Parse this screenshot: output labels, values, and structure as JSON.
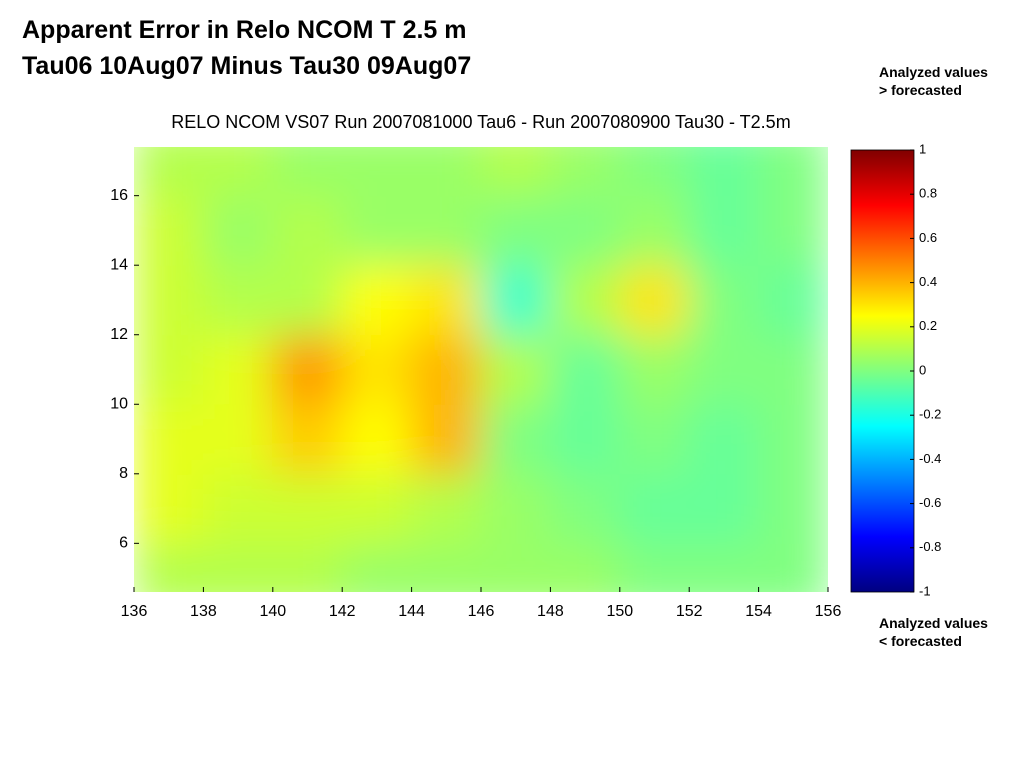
{
  "header": {
    "title_lines": [
      "Apparent Error in Relo NCOM T 2.5 m",
      "Tau06 10Aug07 Minus Tau30 09Aug07"
    ]
  },
  "chart_data": {
    "type": "heatmap",
    "title": "RELO NCOM VS07 Run 2007081000 Tau6 - Run 2007080900 Tau30 - T2.5m",
    "x": [
      137,
      139,
      141,
      143,
      145,
      147,
      149,
      151,
      153,
      155
    ],
    "y": [
      5,
      7,
      9,
      11,
      13,
      15,
      17
    ],
    "values": [
      [
        0.1,
        0.1,
        0.1,
        0.05,
        0.05,
        0.05,
        0.05,
        0,
        0,
        0
      ],
      [
        0.2,
        0.15,
        0.15,
        0.15,
        0.1,
        0.05,
        0,
        -0.05,
        -0.05,
        0
      ],
      [
        0.2,
        0.2,
        0.35,
        0.25,
        0.4,
        0,
        -0.05,
        0,
        -0.05,
        0
      ],
      [
        0.15,
        0.2,
        0.45,
        0.3,
        0.4,
        0.1,
        -0.05,
        0.05,
        0,
        0
      ],
      [
        0.15,
        0.1,
        0.1,
        0.25,
        0.3,
        -0.15,
        0.1,
        0.3,
        0,
        -0.05
      ],
      [
        0.15,
        0.05,
        0.1,
        0.05,
        0.05,
        0,
        0,
        0.05,
        -0.05,
        0
      ],
      [
        0.1,
        0.1,
        0.05,
        0.05,
        0.05,
        0.1,
        0.05,
        0,
        -0.05,
        0
      ]
    ],
    "xlim": [
      136,
      156
    ],
    "xticks": [
      136,
      138,
      140,
      142,
      144,
      146,
      148,
      150,
      152,
      154,
      156
    ],
    "ylim": [
      4.6,
      17.4
    ],
    "yticks": [
      6,
      8,
      10,
      12,
      14,
      16
    ],
    "colormap": "jet",
    "clim": [
      -1,
      1
    ],
    "cticks": [
      -1,
      -0.8,
      -0.6,
      -0.4,
      -0.2,
      0,
      0.2,
      0.4,
      0.6,
      0.8,
      1
    ],
    "annotations": [
      [
        "Analyzed values",
        "> forecasted"
      ],
      [
        "Analyzed values",
        "< forecasted"
      ]
    ]
  }
}
